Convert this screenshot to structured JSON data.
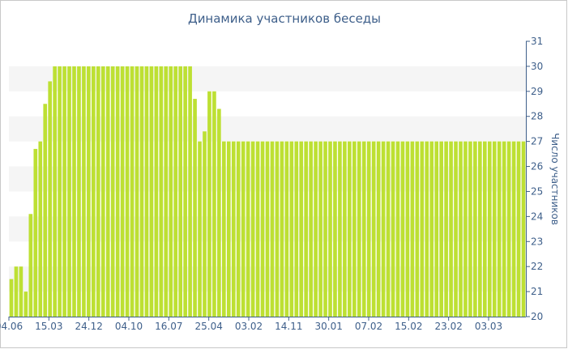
{
  "colors": {
    "bar": "#bde033",
    "band": "#f5f5f5",
    "text": "#3e5f8a",
    "axis": "#3e5f8a"
  },
  "chart_data": {
    "type": "bar",
    "title": "Динамика участников беседы",
    "xlabel": "",
    "ylabel": "Число участников",
    "ylim": [
      20,
      31
    ],
    "y_ticks": [
      20,
      21,
      22,
      23,
      24,
      25,
      26,
      27,
      28,
      29,
      30,
      31
    ],
    "y_axis_position": "right",
    "grid": "alternating horizontal bands",
    "x_tick_labels": [
      "04.06",
      "15.03",
      "24.12",
      "04.10",
      "16.07",
      "25.04",
      "03.02",
      "14.11",
      "30.01",
      "07.02",
      "15.02",
      "23.02",
      "03.03"
    ],
    "values": [
      21.5,
      22,
      22,
      21,
      24.1,
      26.7,
      27,
      28.5,
      29.4,
      30,
      30,
      30,
      30,
      30,
      30,
      30,
      30,
      30,
      30,
      30,
      30,
      30,
      30,
      30,
      30,
      30,
      30,
      30,
      30,
      30,
      30,
      30,
      30,
      30,
      30,
      30,
      30,
      30,
      28.7,
      27,
      27.4,
      29,
      29,
      28.3,
      27,
      27,
      27,
      27,
      27,
      27,
      27,
      27,
      27,
      27,
      27,
      27,
      27,
      27,
      27,
      27,
      27,
      27,
      27,
      27,
      27,
      27,
      27,
      27,
      27,
      27,
      27,
      27,
      27,
      27,
      27,
      27,
      27,
      27,
      27,
      27,
      27,
      27,
      27,
      27,
      27,
      27,
      27,
      27,
      27,
      27,
      27,
      27,
      27,
      27,
      27,
      27,
      27,
      27,
      27,
      27,
      27,
      27,
      27,
      27,
      27,
      27,
      27
    ]
  }
}
